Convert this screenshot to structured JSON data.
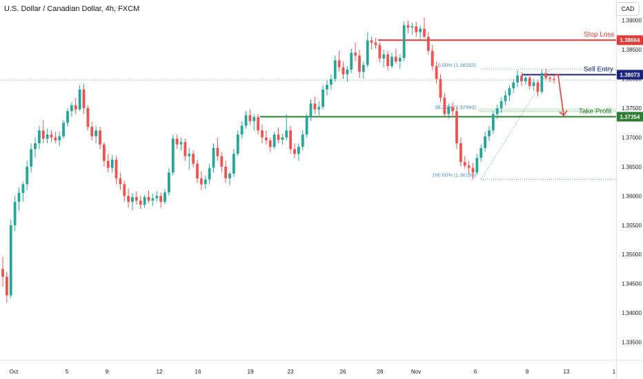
{
  "header": {
    "title": "U.S. Dollar / Canadian Dollar, 4h, FXCM",
    "currency": "CAD"
  },
  "colors": {
    "bull": "#26a69a",
    "bear": "#ef5350",
    "stop": "#e53935",
    "entry": "#1a237e",
    "profit": "#2e7d32",
    "fib": "#4a90c8"
  },
  "chart_data": {
    "type": "candlestick",
    "symbol": "U.S. Dollar / Canadian Dollar",
    "timeframe": "4h",
    "y_ticks": [
      "1.39000",
      "1.38500",
      "1.38000",
      "1.37500",
      "1.37000",
      "1.36500",
      "1.36000",
      "1.35500",
      "1.35000",
      "1.34500",
      "1.34000",
      "1.33500"
    ],
    "ylim": [
      1.332,
      1.3935
    ],
    "x_ticks": [
      "Oct",
      "5",
      "9",
      "12",
      "16",
      "19",
      "23",
      "26",
      "28",
      "Nov",
      "6",
      "9",
      "13",
      "1"
    ],
    "levels": [
      {
        "name": "Stop Loss",
        "value": 1.38664,
        "tag": "1.38664"
      },
      {
        "name": "Sell Entry",
        "value": 1.38073,
        "tag": "1.38073"
      },
      {
        "name": "Take Profit",
        "value": 1.37354,
        "tag": "1.37354"
      }
    ],
    "fibonacci": [
      {
        "label": "0.00% (1.38162)",
        "value": 1.38162
      },
      {
        "label": "38.20% (1.37443)",
        "value": 1.37443
      },
      {
        "label": "100.00% (1.36280)",
        "value": 1.3628
      }
    ],
    "candles": [
      [
        1.3475,
        1.3496,
        1.3445,
        1.3462
      ],
      [
        1.3462,
        1.347,
        1.3418,
        1.343
      ],
      [
        1.343,
        1.356,
        1.3425,
        1.355
      ],
      [
        1.355,
        1.36,
        1.354,
        1.359
      ],
      [
        1.359,
        1.3615,
        1.3575,
        1.3605
      ],
      [
        1.3605,
        1.3625,
        1.359,
        1.362
      ],
      [
        1.362,
        1.366,
        1.361,
        1.365
      ],
      [
        1.365,
        1.369,
        1.364,
        1.368
      ],
      [
        1.368,
        1.37,
        1.3665,
        1.369
      ],
      [
        1.369,
        1.372,
        1.368,
        1.3712
      ],
      [
        1.3712,
        1.373,
        1.369,
        1.3698
      ],
      [
        1.3698,
        1.3715,
        1.369,
        1.3705
      ],
      [
        1.3705,
        1.3712,
        1.3692,
        1.37
      ],
      [
        1.37,
        1.371,
        1.369,
        1.3695
      ],
      [
        1.3695,
        1.371,
        1.3685,
        1.3702
      ],
      [
        1.3702,
        1.373,
        1.3698,
        1.3725
      ],
      [
        1.3725,
        1.375,
        1.3718,
        1.3745
      ],
      [
        1.3745,
        1.376,
        1.3735,
        1.3755
      ],
      [
        1.3755,
        1.3768,
        1.374,
        1.3748
      ],
      [
        1.3748,
        1.379,
        1.3745,
        1.3782
      ],
      [
        1.3782,
        1.3792,
        1.374,
        1.375
      ],
      [
        1.375,
        1.3755,
        1.3712,
        1.3718
      ],
      [
        1.3718,
        1.3726,
        1.3695,
        1.3702
      ],
      [
        1.3702,
        1.372,
        1.369,
        1.3712
      ],
      [
        1.3712,
        1.3718,
        1.368,
        1.3688
      ],
      [
        1.3688,
        1.3692,
        1.365,
        1.366
      ],
      [
        1.366,
        1.3672,
        1.364,
        1.3648
      ],
      [
        1.3648,
        1.367,
        1.364,
        1.3662
      ],
      [
        1.3662,
        1.3668,
        1.362,
        1.363
      ],
      [
        1.363,
        1.364,
        1.361,
        1.362
      ],
      [
        1.362,
        1.3626,
        1.359,
        1.36
      ],
      [
        1.36,
        1.3612,
        1.358,
        1.359
      ],
      [
        1.359,
        1.3605,
        1.3575,
        1.3598
      ],
      [
        1.3598,
        1.3608,
        1.3585,
        1.3592
      ],
      [
        1.3592,
        1.36,
        1.3578,
        1.3585
      ],
      [
        1.3585,
        1.3602,
        1.358,
        1.3598
      ],
      [
        1.3598,
        1.361,
        1.3588,
        1.3592
      ],
      [
        1.3592,
        1.3604,
        1.3583,
        1.3596
      ],
      [
        1.3596,
        1.3608,
        1.359,
        1.36
      ],
      [
        1.36,
        1.3606,
        1.358,
        1.359
      ],
      [
        1.359,
        1.3612,
        1.3586,
        1.3606
      ],
      [
        1.3606,
        1.3648,
        1.36,
        1.364
      ],
      [
        1.364,
        1.3705,
        1.3635,
        1.3698
      ],
      [
        1.3698,
        1.3705,
        1.368,
        1.3688
      ],
      [
        1.3688,
        1.37,
        1.3678,
        1.3692
      ],
      [
        1.3692,
        1.3698,
        1.366,
        1.3668
      ],
      [
        1.3668,
        1.3682,
        1.3645,
        1.3672
      ],
      [
        1.3672,
        1.3678,
        1.3648,
        1.3655
      ],
      [
        1.3655,
        1.3662,
        1.3622,
        1.363
      ],
      [
        1.363,
        1.3642,
        1.361,
        1.362
      ],
      [
        1.362,
        1.3635,
        1.3612,
        1.3628
      ],
      [
        1.3628,
        1.3655,
        1.362,
        1.3648
      ],
      [
        1.3648,
        1.369,
        1.364,
        1.3682
      ],
      [
        1.3682,
        1.37,
        1.366,
        1.3668
      ],
      [
        1.3668,
        1.3675,
        1.364,
        1.365
      ],
      [
        1.365,
        1.366,
        1.3622,
        1.363
      ],
      [
        1.363,
        1.3642,
        1.3618,
        1.3638
      ],
      [
        1.3638,
        1.368,
        1.3632,
        1.3672
      ],
      [
        1.3672,
        1.3712,
        1.3668,
        1.3705
      ],
      [
        1.3705,
        1.3728,
        1.3698,
        1.372
      ],
      [
        1.372,
        1.3745,
        1.3715,
        1.3738
      ],
      [
        1.3738,
        1.3748,
        1.3722,
        1.3728
      ],
      [
        1.3728,
        1.374,
        1.3712,
        1.3735
      ],
      [
        1.3735,
        1.374,
        1.3705,
        1.3712
      ],
      [
        1.3712,
        1.3722,
        1.369,
        1.37
      ],
      [
        1.37,
        1.3712,
        1.3688,
        1.3695
      ],
      [
        1.3695,
        1.37,
        1.3675,
        1.3684
      ],
      [
        1.3684,
        1.371,
        1.368,
        1.3705
      ],
      [
        1.3705,
        1.3716,
        1.369,
        1.3696
      ],
      [
        1.3696,
        1.3706,
        1.3688,
        1.37
      ],
      [
        1.37,
        1.374,
        1.3695,
        1.3712
      ],
      [
        1.3712,
        1.372,
        1.3672,
        1.368
      ],
      [
        1.368,
        1.369,
        1.3665,
        1.3672
      ],
      [
        1.3672,
        1.369,
        1.366,
        1.3684
      ],
      [
        1.3684,
        1.3712,
        1.3678,
        1.3705
      ],
      [
        1.3705,
        1.374,
        1.37,
        1.3735
      ],
      [
        1.3735,
        1.3765,
        1.3728,
        1.3758
      ],
      [
        1.3758,
        1.377,
        1.374,
        1.3748
      ],
      [
        1.3748,
        1.3762,
        1.3738,
        1.3752
      ],
      [
        1.3752,
        1.379,
        1.3748,
        1.3782
      ],
      [
        1.3782,
        1.3798,
        1.3772,
        1.379
      ],
      [
        1.379,
        1.3808,
        1.3782,
        1.38
      ],
      [
        1.38,
        1.384,
        1.3795,
        1.3832
      ],
      [
        1.3832,
        1.3848,
        1.3812,
        1.382
      ],
      [
        1.382,
        1.383,
        1.38,
        1.3808
      ],
      [
        1.3808,
        1.3822,
        1.3795,
        1.3816
      ],
      [
        1.3816,
        1.3852,
        1.381,
        1.3845
      ],
      [
        1.3845,
        1.3862,
        1.383,
        1.384
      ],
      [
        1.384,
        1.385,
        1.3802,
        1.3812
      ],
      [
        1.3812,
        1.383,
        1.38,
        1.3824
      ],
      [
        1.3824,
        1.388,
        1.382,
        1.3866
      ],
      [
        1.3866,
        1.3872,
        1.385,
        1.3862
      ],
      [
        1.3862,
        1.387,
        1.3852,
        1.3858
      ],
      [
        1.3858,
        1.3862,
        1.3828,
        1.3835
      ],
      [
        1.3835,
        1.385,
        1.382,
        1.3842
      ],
      [
        1.3842,
        1.3848,
        1.3815,
        1.3822
      ],
      [
        1.3822,
        1.3845,
        1.3818,
        1.3838
      ],
      [
        1.3838,
        1.3852,
        1.3826,
        1.383
      ],
      [
        1.383,
        1.3842,
        1.3818,
        1.3836
      ],
      [
        1.3836,
        1.3898,
        1.383,
        1.3892
      ],
      [
        1.3892,
        1.39,
        1.3878,
        1.3888
      ],
      [
        1.3888,
        1.3896,
        1.3876,
        1.389
      ],
      [
        1.389,
        1.3898,
        1.3872,
        1.388
      ],
      [
        1.388,
        1.3892,
        1.3866,
        1.3886
      ],
      [
        1.3886,
        1.3905,
        1.387,
        1.3872
      ],
      [
        1.3872,
        1.388,
        1.3842,
        1.3848
      ],
      [
        1.3848,
        1.3858,
        1.3815,
        1.3822
      ],
      [
        1.3822,
        1.383,
        1.3792,
        1.38
      ],
      [
        1.38,
        1.3808,
        1.376,
        1.3768
      ],
      [
        1.3768,
        1.3776,
        1.3735,
        1.374
      ],
      [
        1.374,
        1.3758,
        1.3732,
        1.3752
      ],
      [
        1.3752,
        1.376,
        1.3735,
        1.3745
      ],
      [
        1.3745,
        1.3752,
        1.368,
        1.369
      ],
      [
        1.369,
        1.37,
        1.365,
        1.3658
      ],
      [
        1.3658,
        1.3668,
        1.3646,
        1.3652
      ],
      [
        1.3652,
        1.366,
        1.3638,
        1.3648
      ],
      [
        1.3648,
        1.3656,
        1.3628,
        1.364
      ],
      [
        1.364,
        1.3672,
        1.3636,
        1.3665
      ],
      [
        1.3665,
        1.3688,
        1.3658,
        1.3682
      ],
      [
        1.3682,
        1.371,
        1.3676,
        1.3702
      ],
      [
        1.3702,
        1.372,
        1.3694,
        1.3712
      ],
      [
        1.3712,
        1.3745,
        1.3706,
        1.374
      ],
      [
        1.374,
        1.3756,
        1.3732,
        1.375
      ],
      [
        1.375,
        1.3768,
        1.3742,
        1.3762
      ],
      [
        1.3762,
        1.378,
        1.3755,
        1.3772
      ],
      [
        1.3772,
        1.379,
        1.3762,
        1.3784
      ],
      [
        1.3784,
        1.38,
        1.3776,
        1.3794
      ],
      [
        1.3794,
        1.3814,
        1.3786,
        1.3806
      ],
      [
        1.3806,
        1.3812,
        1.3788,
        1.3796
      ],
      [
        1.3796,
        1.3808,
        1.379,
        1.3802
      ],
      [
        1.3802,
        1.3808,
        1.3782,
        1.3788
      ],
      [
        1.3788,
        1.38,
        1.378,
        1.3794
      ],
      [
        1.3794,
        1.3798,
        1.377,
        1.3778
      ],
      [
        1.3778,
        1.3816,
        1.3774,
        1.381
      ],
      [
        1.381,
        1.3818,
        1.3798,
        1.3802
      ],
      [
        1.3802,
        1.3808,
        1.3795,
        1.38
      ],
      [
        1.38,
        1.3806,
        1.3792,
        1.3798
      ]
    ]
  }
}
